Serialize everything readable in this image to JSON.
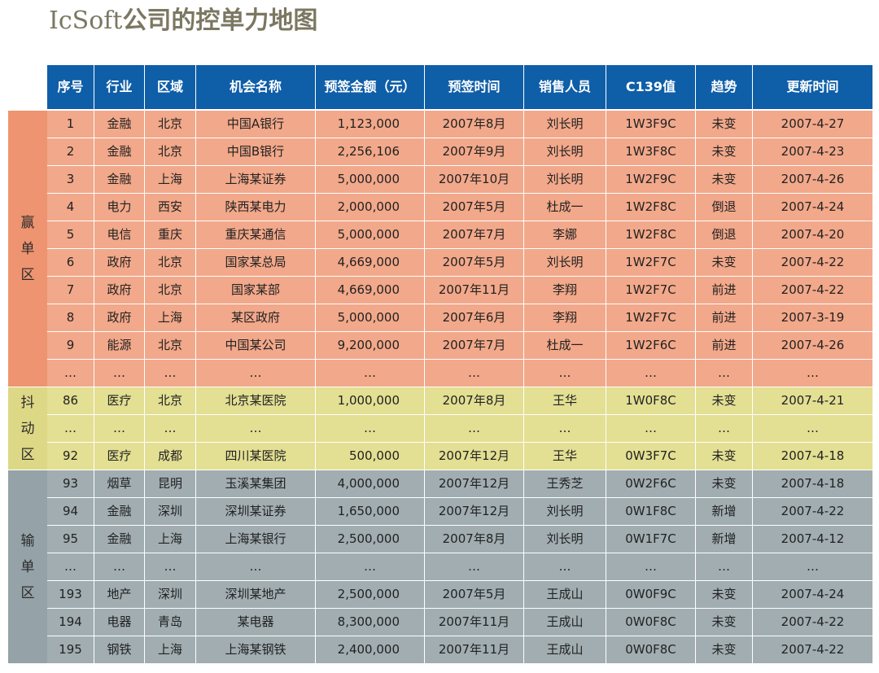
{
  "title": {
    "latin": "IcSoft",
    "cjk": "公司的控单力地图"
  },
  "columns": [
    "序号",
    "行业",
    "区域",
    "机会名称",
    "预签金额（元）",
    "预签时间",
    "销售人员",
    "C139值",
    "趋势",
    "更新时间"
  ],
  "zones": [
    {
      "key": "win",
      "label": [
        "赢",
        "单",
        "区"
      ],
      "color": "#ef9470"
    },
    {
      "key": "shake",
      "label": [
        "抖",
        "动",
        "区"
      ],
      "color": "#ddd886"
    },
    {
      "key": "lose",
      "label": [
        "输",
        "单",
        "区"
      ],
      "color": "#95a2a7"
    }
  ],
  "rows": [
    {
      "zone": "win",
      "cells": [
        "1",
        "金融",
        "北京",
        "中国A银行",
        "1,123,000",
        "2007年8月",
        "刘长明",
        "1W3F9C",
        "未变",
        "2007-4-27"
      ]
    },
    {
      "zone": "win",
      "cells": [
        "2",
        "金融",
        "北京",
        "中国B银行",
        "2,256,106",
        "2007年9月",
        "刘长明",
        "1W3F8C",
        "未变",
        "2007-4-23"
      ]
    },
    {
      "zone": "win",
      "cells": [
        "3",
        "金融",
        "上海",
        "上海某证券",
        "5,000,000",
        "2007年10月",
        "刘长明",
        "1W2F9C",
        "未变",
        "2007-4-26"
      ]
    },
    {
      "zone": "win",
      "cells": [
        "4",
        "电力",
        "西安",
        "陕西某电力",
        "2,000,000",
        "2007年5月",
        "杜成一",
        "1W2F8C",
        "倒退",
        "2007-4-24"
      ]
    },
    {
      "zone": "win",
      "cells": [
        "5",
        "电信",
        "重庆",
        "重庆某通信",
        "5,000,000",
        "2007年7月",
        "李娜",
        "1W2F8C",
        "倒退",
        "2007-4-20"
      ]
    },
    {
      "zone": "win",
      "cells": [
        "6",
        "政府",
        "北京",
        "国家某总局",
        "4,669,000",
        "2007年5月",
        "刘长明",
        "1W2F7C",
        "未变",
        "2007-4-22"
      ]
    },
    {
      "zone": "win",
      "cells": [
        "7",
        "政府",
        "北京",
        "国家某部",
        "4,669,000",
        "2007年11月",
        "李翔",
        "1W2F7C",
        "前进",
        "2007-4-22"
      ]
    },
    {
      "zone": "win",
      "cells": [
        "8",
        "政府",
        "上海",
        "某区政府",
        "5,000,000",
        "2007年6月",
        "李翔",
        "1W2F7C",
        "前进",
        "2007-3-19"
      ]
    },
    {
      "zone": "win",
      "cells": [
        "9",
        "能源",
        "北京",
        "中国某公司",
        "9,200,000",
        "2007年7月",
        "杜成一",
        "1W2F6C",
        "前进",
        "2007-4-26"
      ]
    },
    {
      "zone": "win",
      "cells": [
        "…",
        "…",
        "…",
        "…",
        "…",
        "…",
        "…",
        "…",
        "…",
        "…"
      ]
    },
    {
      "zone": "shake",
      "cells": [
        "86",
        "医疗",
        "北京",
        "北京某医院",
        "1,000,000",
        "2007年8月",
        "王华",
        "1W0F8C",
        "未变",
        "2007-4-21"
      ]
    },
    {
      "zone": "shake",
      "cells": [
        "…",
        "…",
        "…",
        "…",
        "…",
        "…",
        "…",
        "…",
        "…",
        "…"
      ]
    },
    {
      "zone": "shake",
      "cells": [
        "92",
        "医疗",
        "成都",
        "四川某医院",
        "500,000",
        "2007年12月",
        "王华",
        "0W3F7C",
        "未变",
        "2007-4-18"
      ]
    },
    {
      "zone": "lose",
      "cells": [
        "93",
        "烟草",
        "昆明",
        "玉溪某集团",
        "4,000,000",
        "2007年12月",
        "王秀芝",
        "0W2F6C",
        "未变",
        "2007-4-18"
      ]
    },
    {
      "zone": "lose",
      "cells": [
        "94",
        "金融",
        "深圳",
        "深圳某证券",
        "1,650,000",
        "2007年12月",
        "刘长明",
        "0W1F8C",
        "新增",
        "2007-4-22"
      ]
    },
    {
      "zone": "lose",
      "cells": [
        "95",
        "金融",
        "上海",
        "上海某银行",
        "2,500,000",
        "2007年8月",
        "刘长明",
        "0W1F7C",
        "新增",
        "2007-4-12"
      ]
    },
    {
      "zone": "lose",
      "cells": [
        "…",
        "…",
        "…",
        "…",
        "…",
        "…",
        "…",
        "…",
        "…",
        "…"
      ]
    },
    {
      "zone": "lose",
      "cells": [
        "193",
        "地产",
        "深圳",
        "深圳某地产",
        "2,500,000",
        "2007年5月",
        "王成山",
        "0W0F9C",
        "未变",
        "2007-4-24"
      ]
    },
    {
      "zone": "lose",
      "cells": [
        "194",
        "电器",
        "青岛",
        "某电器",
        "8,300,000",
        "2007年11月",
        "王成山",
        "0W0F8C",
        "未变",
        "2007-4-22"
      ]
    },
    {
      "zone": "lose",
      "cells": [
        "195",
        "钢铁",
        "上海",
        "上海某钢铁",
        "2,400,000",
        "2007年11月",
        "王成山",
        "0W0F8C",
        "未变",
        "2007-4-22"
      ]
    }
  ]
}
